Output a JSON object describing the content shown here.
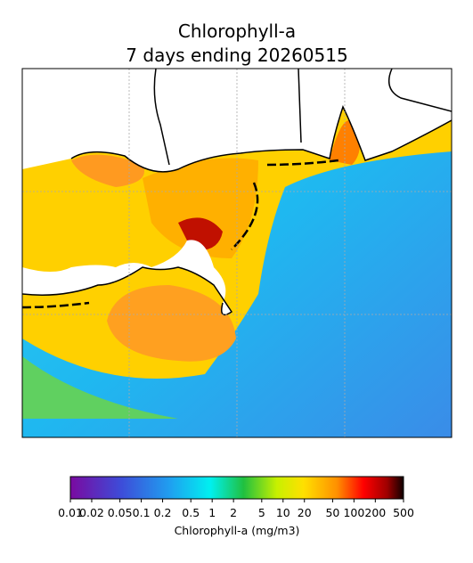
{
  "map": {
    "title": [
      "Chlorophyll-a",
      "7 days ending 20260515"
    ],
    "colorbar": {
      "label": "Chlorophyll-a (mg/m3)",
      "log": true,
      "lim": [
        0.01,
        500
      ],
      "ticks": [
        0.01,
        0.02,
        0.05,
        0.1,
        0.2,
        0.5,
        1,
        2,
        5,
        10,
        20,
        50,
        100,
        200,
        500
      ]
    }
  }
}
